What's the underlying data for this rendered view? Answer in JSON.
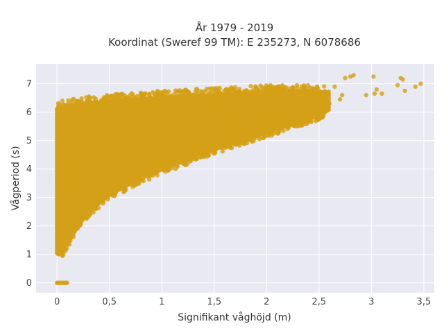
{
  "chart_data": {
    "type": "scatter",
    "title_lines": [
      "År 1979 - 2019",
      "Koordinat (Sweref 99 TM): E 235273, N 6078686"
    ],
    "xlabel": "Signifikant våghöjd (m)",
    "ylabel": "Vågperiod (s)",
    "xlim": [
      -0.2,
      3.6
    ],
    "ylim": [
      -0.35,
      7.7
    ],
    "x_ticks": [
      0,
      0.5,
      1,
      1.5,
      2,
      2.5,
      3,
      3.5
    ],
    "x_tick_labels": [
      "0",
      "0,5",
      "1",
      "1,5",
      "2",
      "2,5",
      "3",
      "3,5"
    ],
    "y_ticks": [
      0,
      1,
      2,
      3,
      4,
      5,
      6,
      7
    ],
    "y_tick_labels": [
      "0",
      "1",
      "2",
      "3",
      "4",
      "5",
      "6",
      "7"
    ],
    "grid": true,
    "marker_color": "#D4A017",
    "plot_background": "#E9E9F1",
    "envelope_upper": [
      {
        "x": 0.0,
        "y": 6.1
      },
      {
        "x": 0.1,
        "y": 6.25
      },
      {
        "x": 0.3,
        "y": 6.35
      },
      {
        "x": 0.6,
        "y": 6.45
      },
      {
        "x": 1.0,
        "y": 6.55
      },
      {
        "x": 1.5,
        "y": 6.65
      },
      {
        "x": 2.0,
        "y": 6.75
      },
      {
        "x": 2.5,
        "y": 6.75
      }
    ],
    "envelope_lower": [
      {
        "x": 0.0,
        "y": 1.05
      },
      {
        "x": 0.05,
        "y": 1.1
      },
      {
        "x": 0.1,
        "y": 1.4
      },
      {
        "x": 0.2,
        "y": 2.0
      },
      {
        "x": 0.3,
        "y": 2.5
      },
      {
        "x": 0.5,
        "y": 3.1
      },
      {
        "x": 0.75,
        "y": 3.6
      },
      {
        "x": 1.0,
        "y": 4.0
      },
      {
        "x": 1.25,
        "y": 4.35
      },
      {
        "x": 1.5,
        "y": 4.7
      },
      {
        "x": 1.75,
        "y": 5.0
      },
      {
        "x": 2.0,
        "y": 5.3
      },
      {
        "x": 2.25,
        "y": 5.6
      },
      {
        "x": 2.5,
        "y": 5.9
      },
      {
        "x": 2.6,
        "y": 6.1
      }
    ],
    "zero_period_cluster": {
      "x_min": 0.0,
      "x_max": 0.1,
      "y": 0
    },
    "outlier_points": [
      {
        "x": 2.5,
        "y": 6.6
      },
      {
        "x": 2.6,
        "y": 6.3
      },
      {
        "x": 2.65,
        "y": 6.9
      },
      {
        "x": 2.7,
        "y": 6.45
      },
      {
        "x": 2.72,
        "y": 6.6
      },
      {
        "x": 2.75,
        "y": 7.2
      },
      {
        "x": 2.8,
        "y": 7.25
      },
      {
        "x": 2.83,
        "y": 7.3
      },
      {
        "x": 2.95,
        "y": 6.6
      },
      {
        "x": 3.02,
        "y": 7.25
      },
      {
        "x": 3.03,
        "y": 6.65
      },
      {
        "x": 3.05,
        "y": 6.8
      },
      {
        "x": 3.1,
        "y": 6.65
      },
      {
        "x": 3.25,
        "y": 6.95
      },
      {
        "x": 3.28,
        "y": 7.2
      },
      {
        "x": 3.3,
        "y": 7.15
      },
      {
        "x": 3.32,
        "y": 6.75
      },
      {
        "x": 3.42,
        "y": 6.9
      },
      {
        "x": 3.47,
        "y": 7.0
      },
      {
        "x": 0.05,
        "y": 6.4
      },
      {
        "x": 0.28,
        "y": 6.35
      },
      {
        "x": 0.45,
        "y": 6.45
      },
      {
        "x": 0.9,
        "y": 6.5
      },
      {
        "x": 1.2,
        "y": 6.55
      },
      {
        "x": 1.6,
        "y": 6.6
      },
      {
        "x": 2.35,
        "y": 6.7
      }
    ]
  }
}
